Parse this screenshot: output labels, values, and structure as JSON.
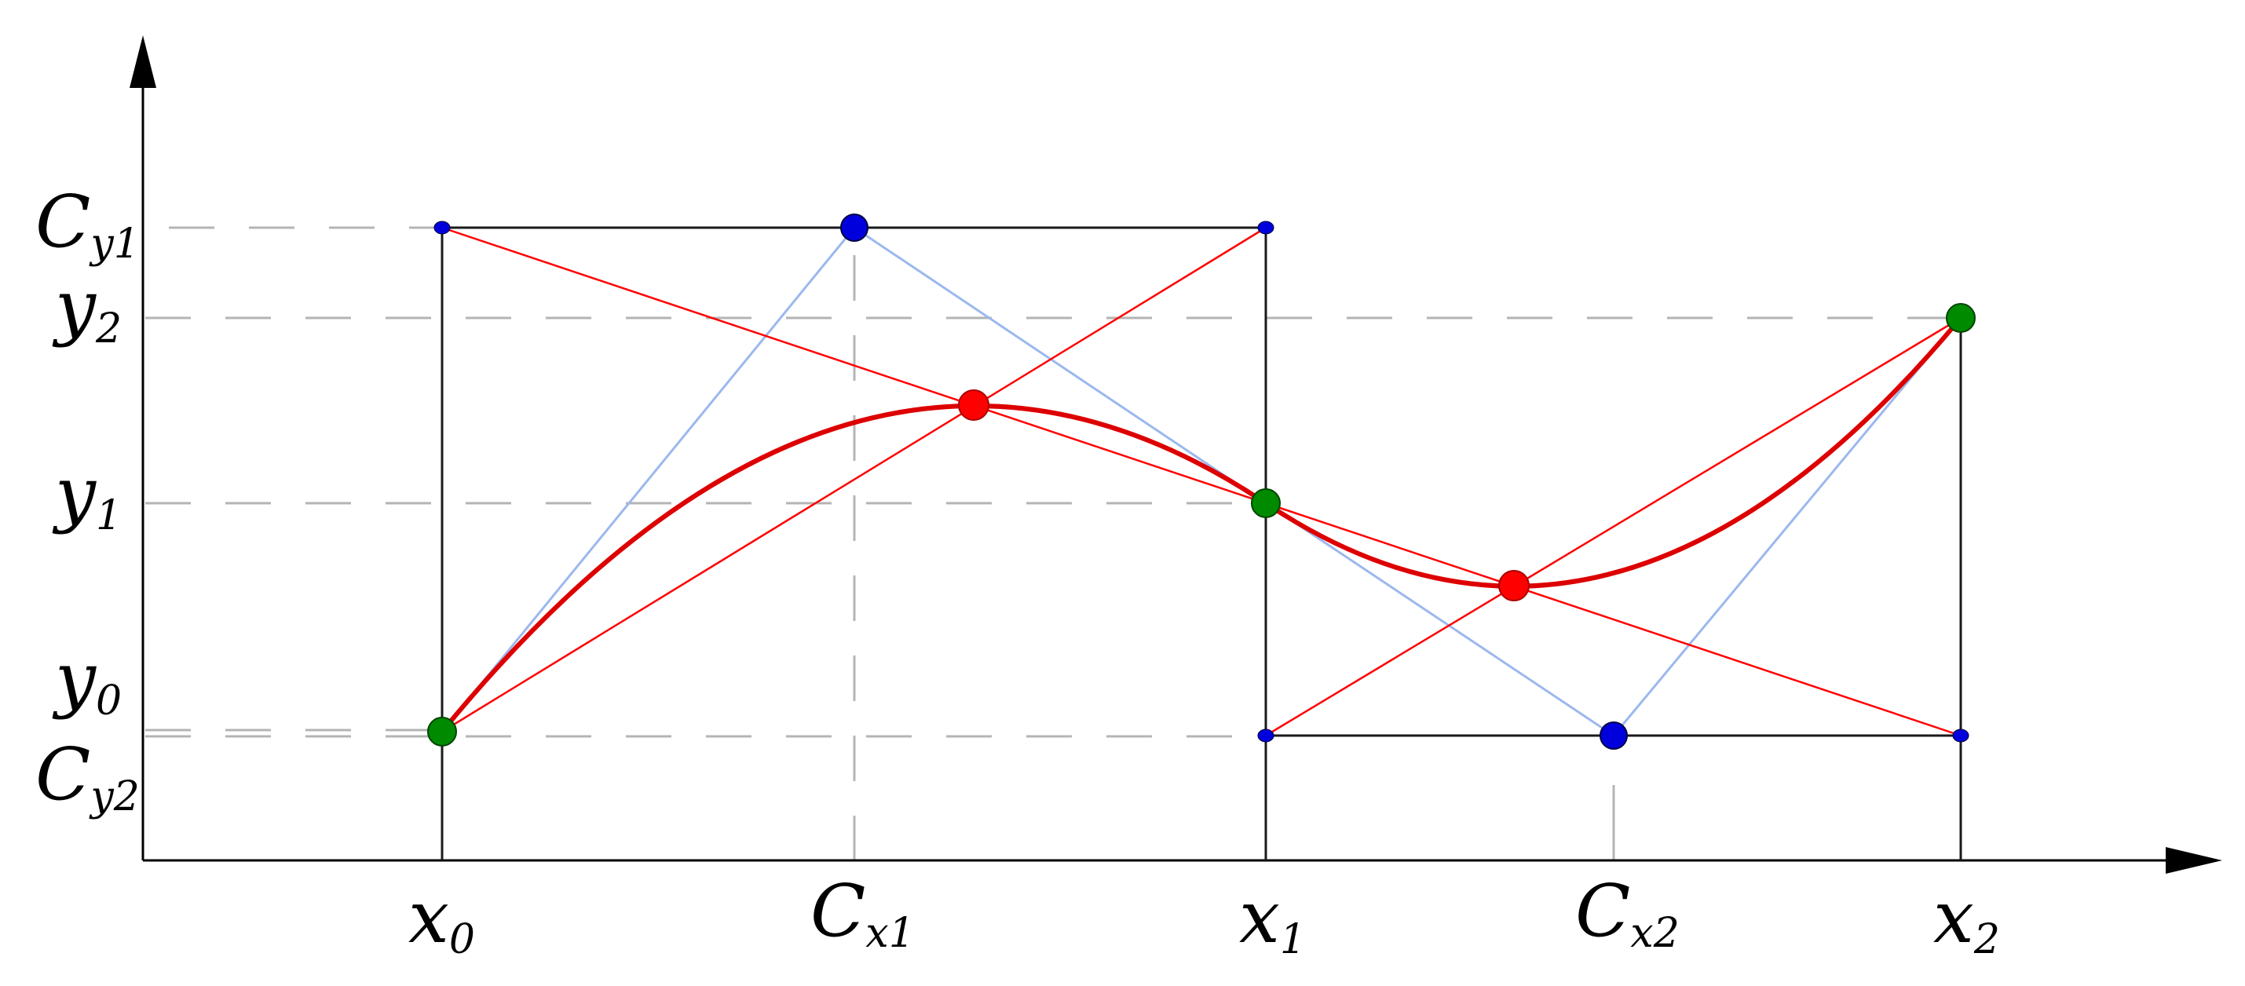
{
  "x_labels": {
    "x0": {
      "main": "x",
      "sub": "0"
    },
    "cx1": {
      "main": "C",
      "sub": "x1"
    },
    "x1": {
      "main": "x",
      "sub": "1"
    },
    "cx2": {
      "main": "C",
      "sub": "x2"
    },
    "x2": {
      "main": "x",
      "sub": "2"
    }
  },
  "y_labels": {
    "cy1": {
      "main": "C",
      "sub": "y1"
    },
    "y2": {
      "main": "y",
      "sub": "2"
    },
    "y1": {
      "main": "y",
      "sub": "1"
    },
    "y0": {
      "main": "y",
      "sub": "0"
    },
    "cy2": {
      "main": "C",
      "sub": "y2"
    }
  },
  "colors": {
    "axis": "#000000",
    "box": "#1a1a1a",
    "guide": "#b4b4b4",
    "curve": "#dd0000",
    "construction": "#ff0000",
    "control_polygon": "#9cb8ee",
    "endpoint": "#008a00",
    "control_point": "#0000dd",
    "midpoint": "#ff0000"
  }
}
